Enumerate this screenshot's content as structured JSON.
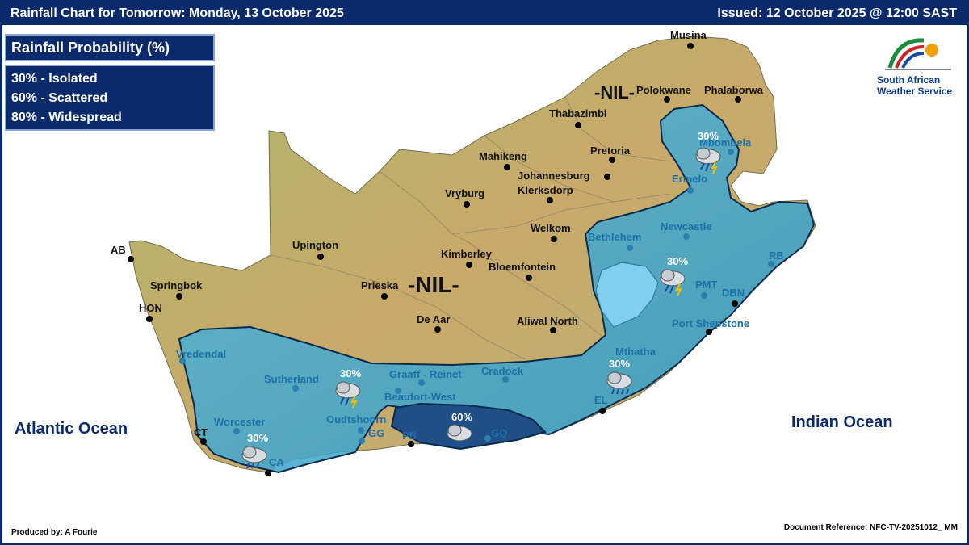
{
  "header": {
    "title": "Rainfall Chart for Tomorrow: Monday, 13 October 2025",
    "issued": "Issued: 12 October 2025 @ 12:00 SAST"
  },
  "legend": {
    "title": "Rainfall Probability (%)",
    "items": [
      "30% - Isolated",
      "60% - Scattered",
      "80% - Widespread"
    ]
  },
  "logo": {
    "line1": "South African",
    "line2": "Weather Service"
  },
  "oceans": {
    "atlantic": "Atlantic Ocean",
    "indian": "Indian Ocean"
  },
  "nil_labels": [
    "-NIL-",
    "-NIL-"
  ],
  "region_labels": [
    "30%",
    "30%",
    "30%",
    "30%",
    "30%",
    "60%"
  ],
  "cities": [
    "Musina",
    "Polokwane",
    "Phalaborwa",
    "Thabazimbi",
    "Mbombela",
    "Pretoria",
    "Mahikeng",
    "Johannesburg",
    "Ermelo",
    "Vryburg",
    "Klerksdorp",
    "Welkom",
    "Newcastle",
    "Bethlehem",
    "AB",
    "Upington",
    "Kimberley",
    "RB",
    "Springbok",
    "Bloemfontein",
    "Prieska",
    "PMT",
    "DBN",
    "HON",
    "De Aar",
    "Aliwal North",
    "Port Shepstone",
    "Vredendal",
    "Mthatha",
    "Sutherland",
    "Graaff - Reinet",
    "Cradock",
    "Beaufort-West",
    "EL",
    "Worcester",
    "Oudtshoorn",
    "CT",
    "GG",
    "PB",
    "GQ",
    "CA"
  ],
  "footer": {
    "produced_by": "Produced by: A Fourie",
    "doc_ref": "Document Reference: NFC-TV-20251012_ MM"
  },
  "colors": {
    "header_bg": "#0b2a6b",
    "rain_30": "#3fb0d6",
    "rain_60": "#1f4f86",
    "land": "#b8b070"
  }
}
